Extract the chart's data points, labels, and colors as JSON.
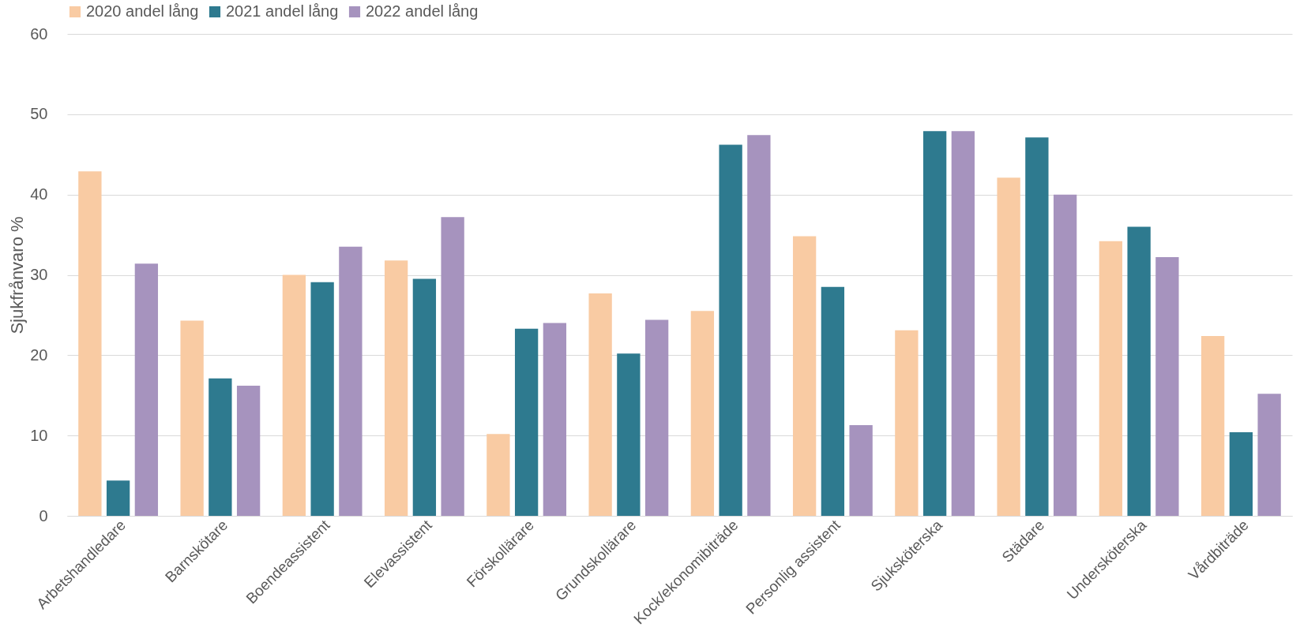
{
  "chart_data": {
    "type": "bar",
    "ylabel": "Sjukfrånvaro %",
    "categories": [
      "Arbetshandledare",
      "Barnskötare",
      "Boendeassistent",
      "Elevassistent",
      "Förskollärare",
      "Grundskollärare",
      "Kock/ekonomibiträde",
      "Personlig assistent",
      "Sjuksköterska",
      "Städare",
      "Undersköterska",
      "Vårdbiträde"
    ],
    "series": [
      {
        "name": "2020 andel lång",
        "color": "#f9cba3",
        "values": [
          42.9,
          24.3,
          30.0,
          31.8,
          10.2,
          27.7,
          25.5,
          34.8,
          23.1,
          42.1,
          34.2,
          22.4
        ]
      },
      {
        "name": "2021 andel lång",
        "color": "#2e7a8f",
        "values": [
          4.4,
          17.1,
          29.1,
          29.5,
          23.3,
          20.2,
          46.2,
          28.5,
          47.9,
          47.1,
          36.0,
          10.4
        ]
      },
      {
        "name": "2022 andel lång",
        "color": "#a693be",
        "values": [
          31.4,
          16.2,
          33.5,
          37.2,
          24.0,
          24.4,
          47.4,
          11.3,
          47.9,
          40.0,
          32.2,
          15.2
        ]
      }
    ],
    "ylim": [
      0,
      60
    ],
    "yticks": [
      0,
      10,
      20,
      30,
      40,
      50,
      60
    ],
    "grid": "y",
    "legend": "top"
  }
}
